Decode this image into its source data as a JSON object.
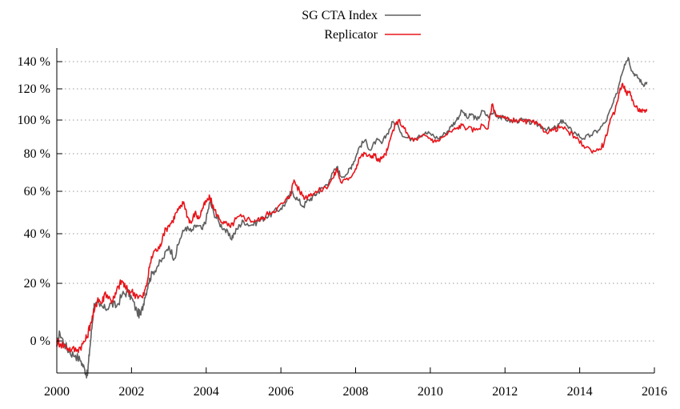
{
  "chart_data": {
    "type": "line",
    "title": "",
    "xlabel": "",
    "ylabel": "",
    "xlim": [
      2000,
      2016
    ],
    "ylim": [
      -13,
      147
    ],
    "x_ticks": [
      2000,
      2002,
      2004,
      2006,
      2008,
      2010,
      2012,
      2014,
      2016
    ],
    "x_tick_labels": [
      "2000",
      "2002",
      "2004",
      "2006",
      "2008",
      "2010",
      "2012",
      "2014",
      "2016"
    ],
    "y_ticks": [
      0,
      20,
      40,
      60,
      80,
      100,
      120,
      140
    ],
    "y_tick_labels": [
      "0 %",
      "20 %",
      "40 %",
      "60 %",
      "80 %",
      "100 %",
      "120 %",
      "140 %"
    ],
    "grid": true,
    "legend_position": "top-center",
    "series": [
      {
        "name": "SG CTA Index",
        "color": "#5f5f5f",
        "points": [
          [
            2000.0,
            -2
          ],
          [
            2000.08,
            3
          ],
          [
            2000.2,
            -1
          ],
          [
            2000.35,
            -4
          ],
          [
            2000.5,
            -5
          ],
          [
            2000.65,
            -7
          ],
          [
            2000.75,
            -10
          ],
          [
            2000.82,
            -12
          ],
          [
            2000.88,
            -3
          ],
          [
            2000.95,
            6
          ],
          [
            2001.0,
            13
          ],
          [
            2001.15,
            12
          ],
          [
            2001.3,
            11
          ],
          [
            2001.45,
            13
          ],
          [
            2001.6,
            12
          ],
          [
            2001.75,
            16
          ],
          [
            2001.9,
            17
          ],
          [
            2002.0,
            15
          ],
          [
            2002.15,
            10
          ],
          [
            2002.25,
            9
          ],
          [
            2002.35,
            15
          ],
          [
            2002.45,
            20
          ],
          [
            2002.55,
            24
          ],
          [
            2002.7,
            27
          ],
          [
            2002.85,
            30
          ],
          [
            2003.0,
            35
          ],
          [
            2003.15,
            30
          ],
          [
            2003.3,
            38
          ],
          [
            2003.45,
            43
          ],
          [
            2003.6,
            41
          ],
          [
            2003.75,
            44
          ],
          [
            2003.9,
            42
          ],
          [
            2004.0,
            47
          ],
          [
            2004.1,
            55
          ],
          [
            2004.2,
            50
          ],
          [
            2004.35,
            45
          ],
          [
            2004.5,
            42
          ],
          [
            2004.65,
            38
          ],
          [
            2004.75,
            40
          ],
          [
            2004.9,
            44
          ],
          [
            2005.0,
            46
          ],
          [
            2005.2,
            44
          ],
          [
            2005.4,
            46
          ],
          [
            2005.6,
            48
          ],
          [
            2005.8,
            50
          ],
          [
            2006.0,
            52
          ],
          [
            2006.15,
            55
          ],
          [
            2006.3,
            60
          ],
          [
            2006.45,
            56
          ],
          [
            2006.6,
            53
          ],
          [
            2006.75,
            56
          ],
          [
            2006.9,
            58
          ],
          [
            2007.0,
            60
          ],
          [
            2007.15,
            62
          ],
          [
            2007.3,
            66
          ],
          [
            2007.5,
            73
          ],
          [
            2007.6,
            68
          ],
          [
            2007.8,
            70
          ],
          [
            2007.9,
            74
          ],
          [
            2008.0,
            78
          ],
          [
            2008.1,
            84
          ],
          [
            2008.25,
            88
          ],
          [
            2008.4,
            82
          ],
          [
            2008.55,
            88
          ],
          [
            2008.7,
            86
          ],
          [
            2008.85,
            92
          ],
          [
            2009.0,
            99
          ],
          [
            2009.15,
            96
          ],
          [
            2009.3,
            90
          ],
          [
            2009.5,
            89
          ],
          [
            2009.7,
            91
          ],
          [
            2009.85,
            92
          ],
          [
            2010.0,
            92
          ],
          [
            2010.2,
            89
          ],
          [
            2010.4,
            92
          ],
          [
            2010.55,
            96
          ],
          [
            2010.7,
            100
          ],
          [
            2010.85,
            106
          ],
          [
            2011.0,
            101
          ],
          [
            2011.1,
            104
          ],
          [
            2011.25,
            100
          ],
          [
            2011.4,
            106
          ],
          [
            2011.55,
            102
          ],
          [
            2011.7,
            105
          ],
          [
            2011.85,
            102
          ],
          [
            2012.0,
            101
          ],
          [
            2012.2,
            99
          ],
          [
            2012.4,
            100
          ],
          [
            2012.6,
            99
          ],
          [
            2012.8,
            98
          ],
          [
            2013.0,
            96
          ],
          [
            2013.2,
            94
          ],
          [
            2013.4,
            96
          ],
          [
            2013.55,
            100
          ],
          [
            2013.7,
            95
          ],
          [
            2013.9,
            92
          ],
          [
            2014.1,
            89
          ],
          [
            2014.3,
            91
          ],
          [
            2014.5,
            94
          ],
          [
            2014.7,
            99
          ],
          [
            2014.85,
            108
          ],
          [
            2015.0,
            117
          ],
          [
            2015.1,
            129
          ],
          [
            2015.2,
            138
          ],
          [
            2015.3,
            143
          ],
          [
            2015.4,
            133
          ],
          [
            2015.5,
            130
          ],
          [
            2015.6,
            127
          ],
          [
            2015.7,
            123
          ],
          [
            2015.8,
            125
          ]
        ]
      },
      {
        "name": "Replicator",
        "color": "#e8151b",
        "points": [
          [
            2000.0,
            0
          ],
          [
            2000.1,
            -1
          ],
          [
            2000.25,
            -2
          ],
          [
            2000.4,
            -3
          ],
          [
            2000.55,
            -3
          ],
          [
            2000.7,
            -1
          ],
          [
            2000.8,
            1
          ],
          [
            2000.9,
            6
          ],
          [
            2001.0,
            10
          ],
          [
            2001.1,
            15
          ],
          [
            2001.2,
            13
          ],
          [
            2001.3,
            17
          ],
          [
            2001.45,
            14
          ],
          [
            2001.55,
            15
          ],
          [
            2001.65,
            19
          ],
          [
            2001.75,
            21
          ],
          [
            2001.85,
            18
          ],
          [
            2002.0,
            17
          ],
          [
            2002.15,
            16
          ],
          [
            2002.3,
            15
          ],
          [
            2002.4,
            19
          ],
          [
            2002.5,
            28
          ],
          [
            2002.6,
            33
          ],
          [
            2002.75,
            34
          ],
          [
            2002.85,
            40
          ],
          [
            2003.0,
            44
          ],
          [
            2003.1,
            46
          ],
          [
            2003.2,
            50
          ],
          [
            2003.3,
            52
          ],
          [
            2003.4,
            55
          ],
          [
            2003.5,
            48
          ],
          [
            2003.6,
            45
          ],
          [
            2003.7,
            50
          ],
          [
            2003.8,
            47
          ],
          [
            2003.9,
            52
          ],
          [
            2004.0,
            55
          ],
          [
            2004.1,
            57
          ],
          [
            2004.2,
            52
          ],
          [
            2004.35,
            47
          ],
          [
            2004.5,
            45
          ],
          [
            2004.65,
            43
          ],
          [
            2004.8,
            47
          ],
          [
            2004.95,
            48
          ],
          [
            2005.1,
            47
          ],
          [
            2005.3,
            46
          ],
          [
            2005.5,
            47
          ],
          [
            2005.7,
            50
          ],
          [
            2005.9,
            52
          ],
          [
            2006.1,
            55
          ],
          [
            2006.25,
            58
          ],
          [
            2006.35,
            66
          ],
          [
            2006.5,
            60
          ],
          [
            2006.65,
            57
          ],
          [
            2006.8,
            59
          ],
          [
            2007.0,
            60
          ],
          [
            2007.2,
            62
          ],
          [
            2007.4,
            67
          ],
          [
            2007.5,
            72
          ],
          [
            2007.6,
            65
          ],
          [
            2007.8,
            66
          ],
          [
            2008.0,
            72
          ],
          [
            2008.1,
            78
          ],
          [
            2008.25,
            80
          ],
          [
            2008.4,
            78
          ],
          [
            2008.5,
            80
          ],
          [
            2008.6,
            76
          ],
          [
            2008.75,
            78
          ],
          [
            2008.85,
            82
          ],
          [
            2009.0,
            94
          ],
          [
            2009.15,
            100
          ],
          [
            2009.3,
            95
          ],
          [
            2009.45,
            89
          ],
          [
            2009.65,
            88
          ],
          [
            2009.85,
            91
          ],
          [
            2010.0,
            89
          ],
          [
            2010.15,
            87
          ],
          [
            2010.35,
            90
          ],
          [
            2010.55,
            93
          ],
          [
            2010.7,
            95
          ],
          [
            2010.85,
            97
          ],
          [
            2011.0,
            95
          ],
          [
            2011.2,
            94
          ],
          [
            2011.4,
            97
          ],
          [
            2011.55,
            95
          ],
          [
            2011.65,
            110
          ],
          [
            2011.75,
            104
          ],
          [
            2011.9,
            102
          ],
          [
            2012.1,
            100
          ],
          [
            2012.3,
            100
          ],
          [
            2012.5,
            99
          ],
          [
            2012.7,
            99
          ],
          [
            2012.9,
            97
          ],
          [
            2013.1,
            93
          ],
          [
            2013.3,
            94
          ],
          [
            2013.5,
            96
          ],
          [
            2013.7,
            93
          ],
          [
            2013.9,
            89
          ],
          [
            2014.1,
            85
          ],
          [
            2014.3,
            82
          ],
          [
            2014.5,
            82
          ],
          [
            2014.65,
            86
          ],
          [
            2014.8,
            98
          ],
          [
            2014.95,
            106
          ],
          [
            2015.05,
            117
          ],
          [
            2015.15,
            124
          ],
          [
            2015.25,
            117
          ],
          [
            2015.35,
            118
          ],
          [
            2015.45,
            110
          ],
          [
            2015.55,
            107
          ],
          [
            2015.65,
            106
          ],
          [
            2015.75,
            105
          ],
          [
            2015.8,
            107
          ]
        ]
      }
    ]
  }
}
